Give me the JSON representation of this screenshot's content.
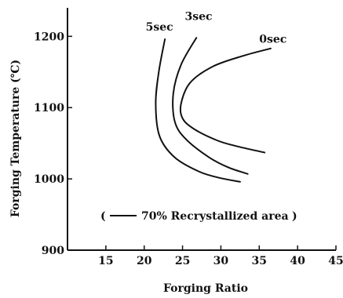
{
  "chart_data": {
    "type": "line",
    "title": "",
    "xlabel": "Forging Ratio",
    "ylabel": "Forging Temperature (℃)",
    "xlim": [
      10,
      45
    ],
    "ylim": [
      900,
      1240
    ],
    "x_ticks": [
      15,
      20,
      25,
      30,
      35,
      40,
      45
    ],
    "x_tick_labels": [
      "15",
      "20",
      "25",
      "30",
      "35",
      "40",
      "45"
    ],
    "y_ticks": [
      900,
      1000,
      1100,
      1200
    ],
    "y_tick_labels": [
      "900",
      "1000",
      "1100",
      "1200"
    ],
    "grid": false,
    "legend": {
      "open_paren": "(",
      "text": "70% Recrystallized area",
      "close_paren": ")",
      "placement": "bottom-center"
    },
    "series": [
      {
        "name": "5sec",
        "points": [
          [
            22.7,
            1196
          ],
          [
            21.9,
            1150
          ],
          [
            21.5,
            1105
          ],
          [
            22.0,
            1060
          ],
          [
            24.0,
            1030
          ],
          [
            27.2,
            1010
          ],
          [
            30.0,
            1001
          ],
          [
            32.5,
            996
          ]
        ]
      },
      {
        "name": "3sec",
        "points": [
          [
            26.8,
            1198
          ],
          [
            24.8,
            1160
          ],
          [
            23.8,
            1120
          ],
          [
            24.0,
            1080
          ],
          [
            25.5,
            1055
          ],
          [
            28.5,
            1030
          ],
          [
            31.0,
            1016
          ],
          [
            33.5,
            1007
          ]
        ]
      },
      {
        "name": "0sec",
        "points": [
          [
            36.5,
            1183
          ],
          [
            33.0,
            1173
          ],
          [
            29.0,
            1158
          ],
          [
            26.0,
            1135
          ],
          [
            24.8,
            1105
          ],
          [
            25.0,
            1085
          ],
          [
            26.5,
            1070
          ],
          [
            29.5,
            1054
          ],
          [
            32.0,
            1046
          ],
          [
            35.7,
            1037
          ]
        ]
      }
    ],
    "curve_labels": [
      {
        "text": "5sec",
        "x": 20.2,
        "y": 1208
      },
      {
        "text": "3sec",
        "x": 25.3,
        "y": 1223
      },
      {
        "text": "0sec",
        "x": 35.0,
        "y": 1191
      }
    ]
  }
}
